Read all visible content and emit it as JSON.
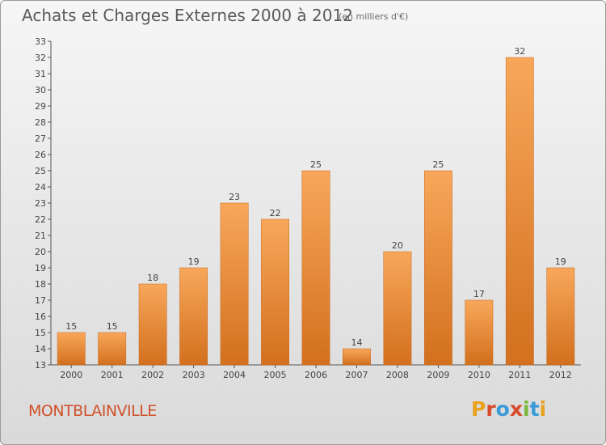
{
  "header": {
    "title": "Achats et Charges Externes 2000 à 2012",
    "unit": "(en milliers d'€)"
  },
  "footer": {
    "town": "MONTBLAINVILLE",
    "logo_text": "Proxiti",
    "logo_colors": [
      "#e8a21c",
      "#d94a2a",
      "#3a9ad9",
      "#d94a2a",
      "#7ab83a",
      "#3a9ad9",
      "#e8a21c"
    ]
  },
  "colors": {
    "bar_light": "#f8a75a",
    "bar_dark": "#d2701e",
    "axis": "#555555",
    "grid": "#cfcfcf"
  },
  "chart_data": {
    "type": "bar",
    "title": "Achats et Charges Externes 2000 à 2012",
    "subtitle": "(en milliers d'€)",
    "categories": [
      "2000",
      "2001",
      "2002",
      "2003",
      "2004",
      "2005",
      "2006",
      "2007",
      "2008",
      "2009",
      "2010",
      "2011",
      "2012"
    ],
    "values": [
      15,
      15,
      18,
      19,
      23,
      22,
      25,
      14,
      20,
      25,
      17,
      32,
      19
    ],
    "ylim": [
      13,
      33
    ],
    "yticks": [
      13,
      14,
      15,
      16,
      17,
      18,
      19,
      20,
      21,
      22,
      23,
      24,
      25,
      26,
      27,
      28,
      29,
      30,
      31,
      32,
      33
    ],
    "grid": false,
    "data_labels": true
  }
}
